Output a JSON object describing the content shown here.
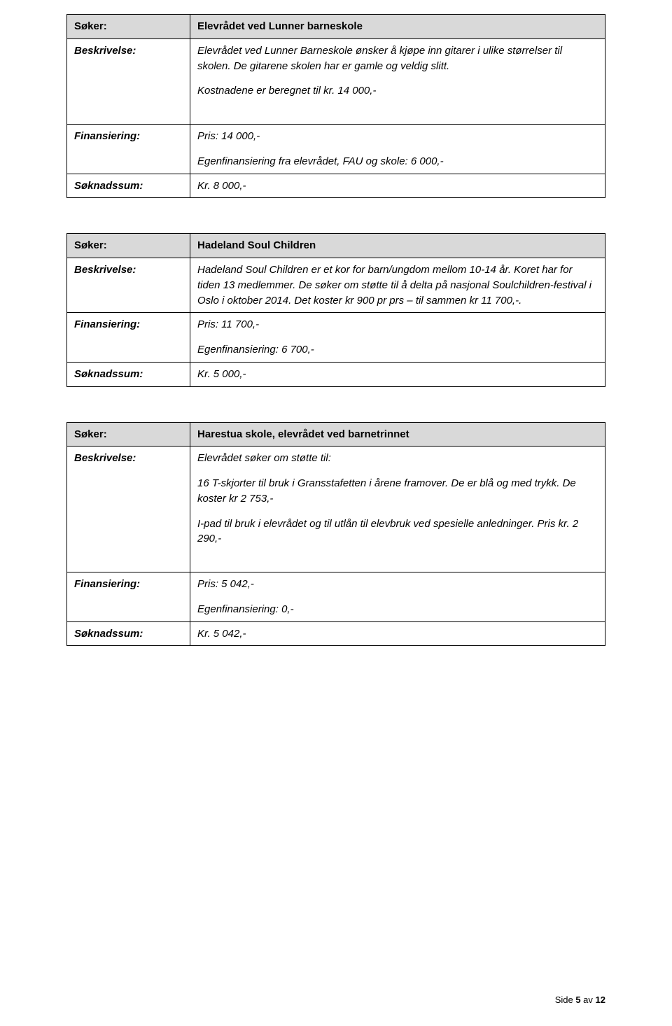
{
  "labels": {
    "soker": "Søker:",
    "beskrivelse": "Beskrivelse:",
    "finansiering": "Finansiering:",
    "soknadssum": "Søknadssum:"
  },
  "block1": {
    "soker": "Elevrådet ved Lunner barneskole",
    "desc1": "Elevrådet ved Lunner Barneskole ønsker å kjøpe inn gitarer i ulike størrelser til skolen. De gitarene skolen har er gamle og veldig slitt.",
    "desc2": "Kostnadene er beregnet til kr. 14 000,-",
    "fin1": "Pris: 14 000,-",
    "fin2": "Egenfinansiering fra elevrådet, FAU og skole: 6 000,-",
    "sum": "Kr. 8 000,-"
  },
  "block2": {
    "soker": "Hadeland Soul Children",
    "desc1": "Hadeland Soul Children er et kor for barn/ungdom mellom 10-14 år. Koret har for tiden 13 medlemmer. De søker om støtte til å delta på nasjonal Soulchildren-festival i Oslo i oktober 2014. Det koster kr 900 pr prs – til sammen kr 11 700,-.",
    "fin1": "Pris: 11 700,-",
    "fin2": "Egenfinansiering: 6 700,-",
    "sum": "Kr. 5 000,-"
  },
  "block3": {
    "soker": "Harestua skole, elevrådet ved barnetrinnet",
    "desc1": "Elevrådet søker om støtte til:",
    "desc2": "16 T-skjorter til bruk i Gransstafetten i årene framover. De er blå og med trykk. De koster kr 2 753,-",
    "desc3": "I-pad til bruk i elevrådet og til utlån til elevbruk ved spesielle anledninger. Pris kr. 2 290,-",
    "fin1": "Pris: 5 042,-",
    "fin2": "Egenfinansiering: 0,-",
    "sum": "Kr. 5 042,-"
  },
  "footer": {
    "prefix": "Side ",
    "current": "5",
    "mid": " av ",
    "total": "12"
  }
}
